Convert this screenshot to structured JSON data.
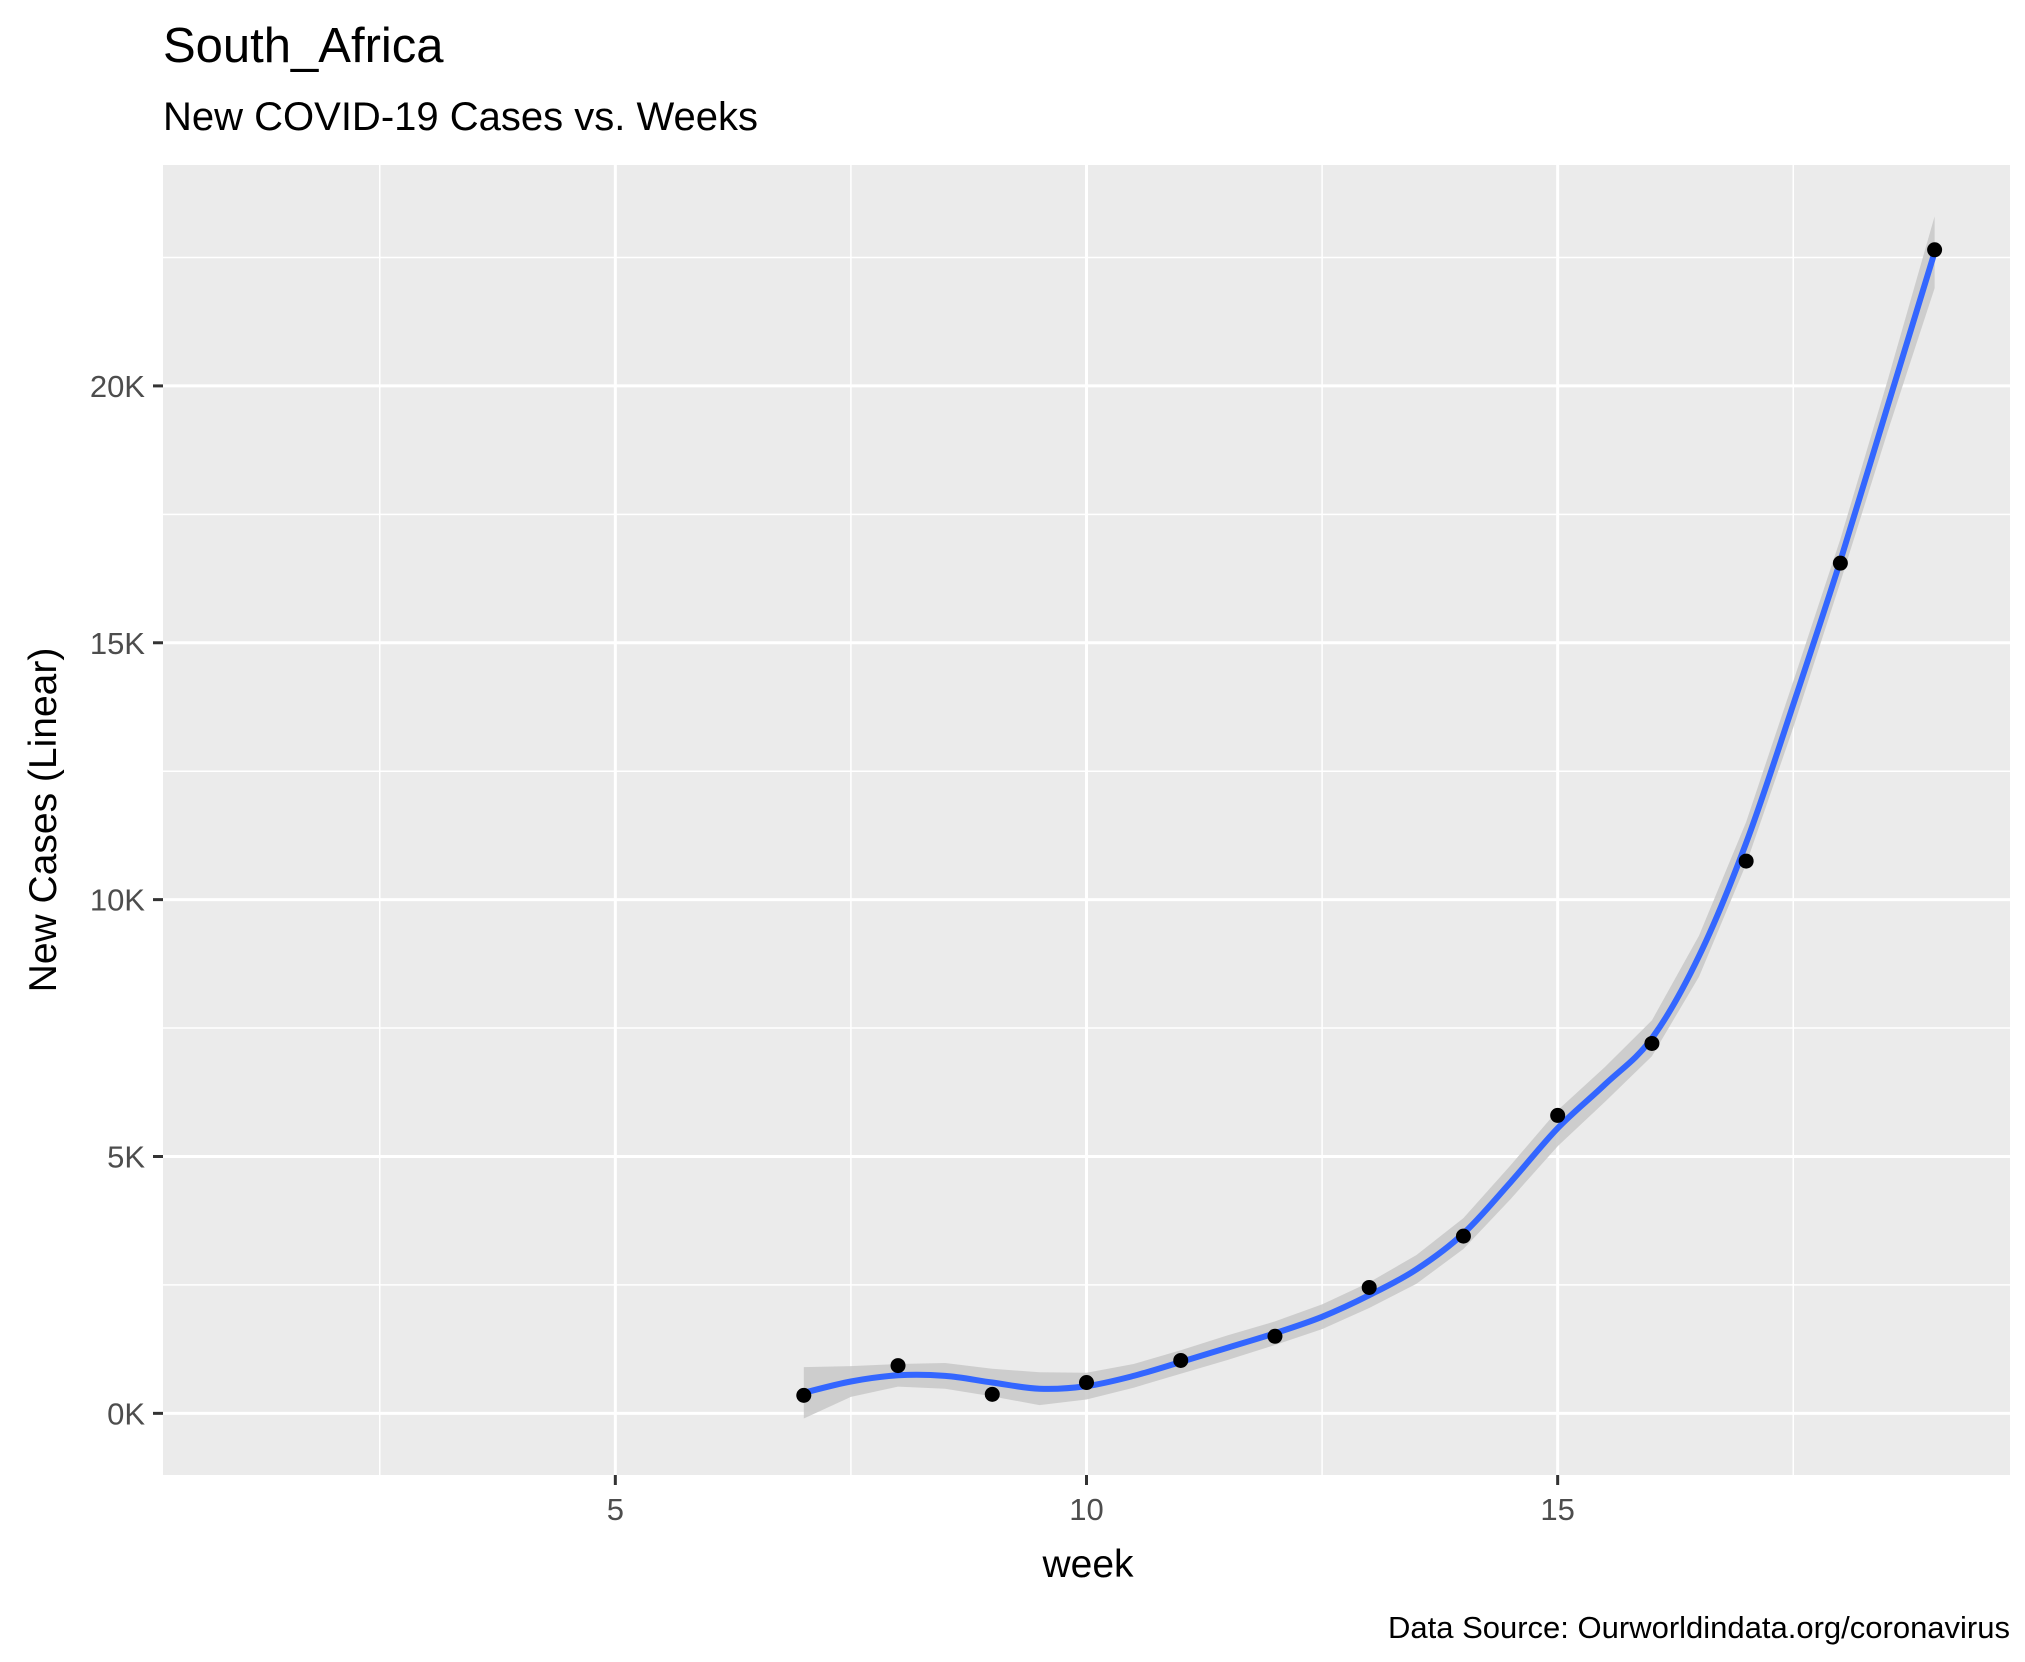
{
  "chart_data": {
    "type": "scatter",
    "title": "South_Africa",
    "subtitle": "New COVID-19 Cases vs. Weeks",
    "xlabel": "week",
    "ylabel": "New Cases (Linear)",
    "caption": "Data Source: Ourworldindata.org/coronavirus",
    "xlim": [
      0.2,
      19.8
    ],
    "ylim": [
      -1200,
      24300
    ],
    "x_ticks": [
      5,
      10,
      15
    ],
    "x_tick_labels": [
      "5",
      "10",
      "15"
    ],
    "x_minor_ticks": [
      2.5,
      7.5,
      12.5,
      17.5
    ],
    "y_ticks": [
      0,
      5000,
      10000,
      15000,
      20000
    ],
    "y_tick_labels": [
      "0K",
      "5K",
      "10K",
      "15K",
      "20K"
    ],
    "y_minor_ticks": [
      2500,
      7500,
      12500,
      17500,
      22500
    ],
    "grid": true,
    "series": [
      {
        "kind": "points",
        "x": [
          7,
          8,
          9,
          10,
          11,
          12,
          13,
          14,
          15,
          16,
          17,
          18,
          19
        ],
        "y": [
          350,
          930,
          370,
          600,
          1030,
          1500,
          2450,
          3450,
          5800,
          7200,
          10750,
          16550,
          22650
        ]
      },
      {
        "kind": "smooth",
        "x": [
          7,
          7.5,
          8,
          8.5,
          9,
          9.5,
          10,
          10.5,
          11,
          11.5,
          12,
          12.5,
          13,
          13.5,
          14,
          14.5,
          15,
          15.5,
          16,
          16.5,
          17,
          17.5,
          18,
          18.5,
          19
        ],
        "y": [
          400,
          620,
          740,
          730,
          600,
          480,
          530,
          730,
          1000,
          1280,
          1560,
          1880,
          2300,
          2800,
          3500,
          4500,
          5550,
          6400,
          7300,
          8900,
          11100,
          13800,
          16600,
          19600,
          22600
        ],
        "se_low": [
          -100,
          320,
          520,
          480,
          330,
          160,
          270,
          500,
          770,
          1040,
          1330,
          1640,
          2050,
          2520,
          3200,
          4170,
          5200,
          6060,
          6950,
          8500,
          10690,
          13350,
          16180,
          19100,
          21900
        ],
        "se_high": [
          900,
          920,
          960,
          980,
          870,
          800,
          790,
          960,
          1230,
          1520,
          1790,
          2120,
          2550,
          3080,
          3800,
          4830,
          5900,
          6740,
          7650,
          9300,
          11510,
          14250,
          17020,
          20100,
          23300
        ]
      }
    ],
    "colors": {
      "panel": "#ebebeb",
      "grid": "#ffffff",
      "line": "#3366ff",
      "ribbon": "#c8c8c8",
      "point": "#000000"
    }
  }
}
